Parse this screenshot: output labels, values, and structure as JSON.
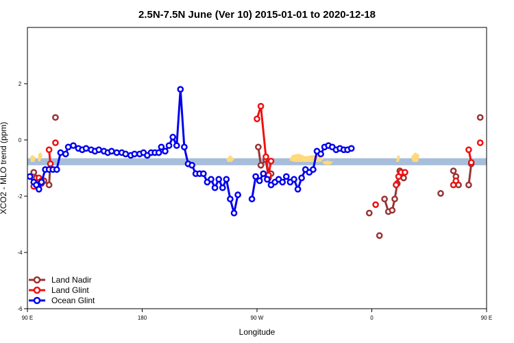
{
  "chart_data": {
    "type": "line",
    "title": "2.5N-7.5N June (Ver 10)   2015-01-01 to 2020-12-18",
    "xlabel": "Longitude",
    "ylabel": "XCO2 - MLO trend (ppm)",
    "xlim": [
      90,
      450
    ],
    "ylim": [
      -6,
      4
    ],
    "x_ticks": [
      {
        "value": 90,
        "label": "90 E"
      },
      {
        "value": 180,
        "label": "180"
      },
      {
        "value": 270,
        "label": "90 W"
      },
      {
        "value": 360,
        "label": "0"
      },
      {
        "value": 450,
        "label": "90 E"
      },
      {
        "value": 540,
        "label": "180"
      }
    ],
    "y_ticks": [
      {
        "value": -6,
        "label": "-6"
      },
      {
        "value": -4,
        "label": "-4"
      },
      {
        "value": -2,
        "label": "-2"
      },
      {
        "value": 0,
        "label": "0"
      },
      {
        "value": 2,
        "label": "2"
      }
    ],
    "band": {
      "y_min": -0.9,
      "y_max": -0.65,
      "color": "#a7bedb"
    },
    "land_patches_color": "#ffd97a",
    "legend_position": "bottom-left",
    "series": [
      {
        "name": "Land Nadir",
        "color": "#993333",
        "segments": [
          [
            [
              95,
              -1.15
            ],
            [
              97,
              -1.35
            ],
            [
              99,
              -1.45
            ],
            [
              101,
              -1.55
            ],
            [
              103,
              -1.45
            ],
            [
              107,
              -1.6
            ],
            [
              108,
              -0.85
            ]
          ],
          [
            [
              112,
              0.8
            ]
          ],
          [
            [
              271,
              -0.25
            ],
            [
              273,
              -0.9
            ],
            [
              277,
              -0.7
            ],
            [
              279,
              -1.35
            ],
            [
              281,
              -1.2
            ]
          ],
          [
            [
              358,
              -2.6
            ]
          ],
          [
            [
              366,
              -3.4
            ]
          ],
          [
            [
              370,
              -2.1
            ],
            [
              373,
              -2.55
            ],
            [
              376,
              -2.5
            ],
            [
              378,
              -2.1
            ],
            [
              380,
              -1.55
            ],
            [
              382,
              -1.1
            ],
            [
              385,
              -1.35
            ]
          ],
          [
            [
              414,
              -1.9
            ]
          ],
          [
            [
              424,
              -1.1
            ],
            [
              426,
              -1.3
            ],
            [
              428,
              -1.6
            ]
          ],
          [
            [
              436,
              -1.6
            ],
            [
              438,
              -0.85
            ]
          ],
          [
            [
              445,
              0.8
            ]
          ]
        ]
      },
      {
        "name": "Land Glint",
        "color": "#ee1111",
        "segments": [
          [
            [
              95,
              -1.65
            ],
            [
              97,
              -1.55
            ],
            [
              99,
              -1.35
            ],
            [
              101,
              -1.45
            ]
          ],
          [
            [
              107,
              -0.35
            ],
            [
              108,
              -0.85
            ]
          ],
          [
            [
              112,
              -0.1
            ]
          ],
          [
            [
              270,
              0.75
            ],
            [
              273,
              1.2
            ],
            [
              277,
              -0.6
            ],
            [
              279,
              -1.25
            ],
            [
              281,
              -0.75
            ]
          ],
          [
            [
              363,
              -2.3
            ]
          ],
          [
            [
              379,
              -1.6
            ],
            [
              381,
              -1.3
            ],
            [
              383,
              -1.15
            ],
            [
              386,
              -1.15
            ]
          ],
          [
            [
              424,
              -1.6
            ],
            [
              426,
              -1.45
            ]
          ],
          [
            [
              436,
              -0.35
            ],
            [
              438,
              -0.8
            ]
          ],
          [
            [
              445,
              -0.1
            ]
          ]
        ]
      },
      {
        "name": "Ocean Glint",
        "color": "#0000ee",
        "segments": [
          [
            [
              92,
              -1.3
            ],
            [
              95,
              -1.5
            ],
            [
              97,
              -1.6
            ],
            [
              99,
              -1.75
            ],
            [
              101,
              -1.5
            ],
            [
              104,
              -1.05
            ],
            [
              107,
              -1.05
            ],
            [
              110,
              -1.05
            ],
            [
              113,
              -1.05
            ],
            [
              116,
              -0.45
            ],
            [
              120,
              -0.5
            ],
            [
              122,
              -0.25
            ],
            [
              126,
              -0.2
            ],
            [
              130,
              -0.3
            ],
            [
              133,
              -0.35
            ],
            [
              136,
              -0.3
            ],
            [
              140,
              -0.35
            ],
            [
              143,
              -0.4
            ],
            [
              146,
              -0.35
            ],
            [
              150,
              -0.4
            ],
            [
              153,
              -0.45
            ],
            [
              156,
              -0.4
            ],
            [
              160,
              -0.45
            ],
            [
              164,
              -0.45
            ],
            [
              167,
              -0.5
            ],
            [
              171,
              -0.55
            ],
            [
              174,
              -0.5
            ],
            [
              178,
              -0.5
            ],
            [
              181,
              -0.45
            ],
            [
              184,
              -0.55
            ],
            [
              187,
              -0.45
            ],
            [
              190,
              -0.45
            ],
            [
              193,
              -0.45
            ],
            [
              195,
              -0.25
            ],
            [
              198,
              -0.4
            ],
            [
              201,
              -0.2
            ],
            [
              204,
              0.1
            ],
            [
              207,
              -0.2
            ],
            [
              210,
              1.8
            ],
            [
              213,
              -0.25
            ],
            [
              216,
              -0.85
            ],
            [
              219,
              -0.9
            ],
            [
              222,
              -1.2
            ],
            [
              225,
              -1.2
            ],
            [
              228,
              -1.2
            ],
            [
              231,
              -1.5
            ],
            [
              234,
              -1.4
            ],
            [
              237,
              -1.7
            ],
            [
              240,
              -1.4
            ],
            [
              243,
              -1.7
            ],
            [
              246,
              -1.4
            ],
            [
              249,
              -2.1
            ],
            [
              252,
              -2.6
            ],
            [
              255,
              -1.95
            ]
          ],
          [
            [
              266,
              -2.1
            ],
            [
              269,
              -1.3
            ],
            [
              272,
              -1.45
            ],
            [
              275,
              -1.2
            ],
            [
              278,
              -1.4
            ],
            [
              281,
              -1.6
            ],
            [
              284,
              -1.5
            ],
            [
              287,
              -1.4
            ],
            [
              290,
              -1.5
            ],
            [
              293,
              -1.3
            ],
            [
              296,
              -1.5
            ],
            [
              299,
              -1.4
            ],
            [
              302,
              -1.75
            ],
            [
              305,
              -1.35
            ],
            [
              308,
              -1.05
            ],
            [
              311,
              -1.15
            ],
            [
              314,
              -1.05
            ],
            [
              317,
              -0.4
            ],
            [
              320,
              -0.5
            ],
            [
              323,
              -0.25
            ],
            [
              326,
              -0.2
            ],
            [
              329,
              -0.25
            ],
            [
              332,
              -0.35
            ],
            [
              335,
              -0.3
            ],
            [
              338,
              -0.35
            ],
            [
              341,
              -0.35
            ],
            [
              344,
              -0.3
            ]
          ]
        ]
      }
    ]
  }
}
